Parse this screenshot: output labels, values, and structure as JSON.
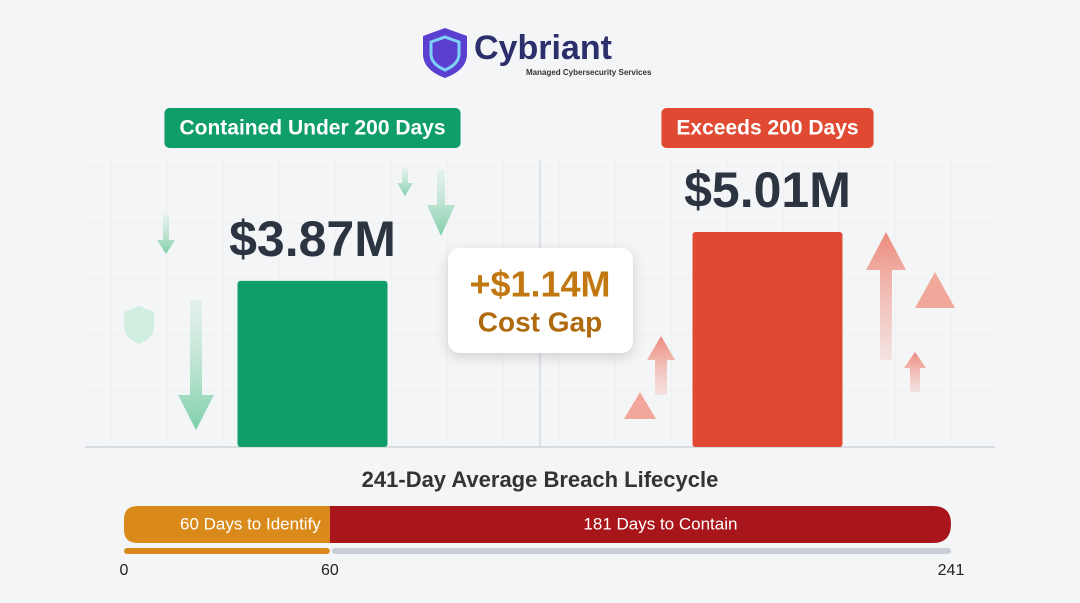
{
  "header": {
    "brand": "Cybriant",
    "tagline": "Managed Cybersecurity Services"
  },
  "chart_data": [
    {
      "type": "bar",
      "categories": [
        "Contained Under 200 Days",
        "Exceeds 200 Days"
      ],
      "values": [
        3.87,
        5.01
      ],
      "value_labels": [
        "$3.87M",
        "$5.01M"
      ],
      "colors": [
        "#0f9d6a",
        "#e04a33"
      ],
      "cost_gap": {
        "label": "+$1.14M",
        "caption": "Cost Gap"
      }
    },
    {
      "type": "stacked_barh",
      "title": "241-Day Average Breach Lifecycle",
      "series": [
        {
          "name": "60 Days to Identify",
          "color": "#d98a1a",
          "values": [
            60
          ]
        },
        {
          "name": "181 Days to Contain",
          "color": "#a8161b",
          "values": [
            181
          ]
        }
      ],
      "xlim": [
        0,
        241
      ],
      "xticks": [
        0,
        60,
        241
      ]
    }
  ]
}
